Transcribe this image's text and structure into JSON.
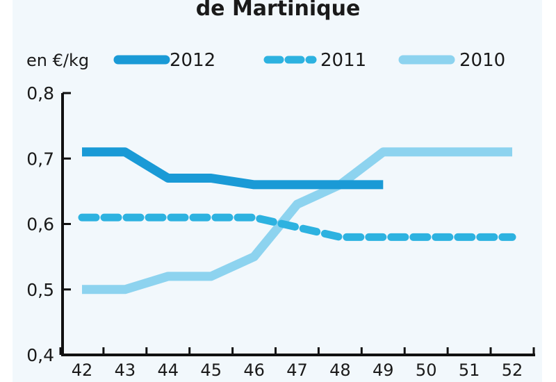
{
  "chart_data": {
    "type": "line",
    "title": "de Martinique",
    "unit_label": "en €/kg",
    "x": [
      42,
      43,
      44,
      45,
      46,
      47,
      48,
      49,
      50,
      51,
      52
    ],
    "x_tick_labels": [
      "42",
      "43",
      "44",
      "45",
      "46",
      "47",
      "48",
      "49",
      "50",
      "51",
      "52"
    ],
    "ylim": [
      0.4,
      0.8
    ],
    "y_ticks": [
      0.4,
      0.5,
      0.6,
      0.7,
      0.8
    ],
    "y_tick_labels": [
      "0,4",
      "0,5",
      "0,6",
      "0,7",
      "0,8"
    ],
    "grid": false,
    "legend_position": "top",
    "series": [
      {
        "name": "2012",
        "color": "#1a9ad6",
        "style": "solid",
        "x": [
          42,
          43,
          44,
          45,
          46,
          47,
          48,
          49
        ],
        "values": [
          0.71,
          0.71,
          0.67,
          0.67,
          0.66,
          0.66,
          0.66,
          0.66
        ]
      },
      {
        "name": "2011",
        "color": "#2db2e0",
        "style": "dashed",
        "x": [
          42,
          43,
          44,
          45,
          46,
          47,
          48,
          49,
          50,
          51,
          52
        ],
        "values": [
          0.61,
          0.61,
          0.61,
          0.61,
          0.61,
          0.595,
          0.58,
          0.58,
          0.58,
          0.58,
          0.58
        ]
      },
      {
        "name": "2010",
        "color": "#8dd3ef",
        "style": "solid",
        "x": [
          42,
          43,
          44,
          45,
          46,
          47,
          48,
          49,
          50,
          51,
          52
        ],
        "values": [
          0.5,
          0.5,
          0.52,
          0.52,
          0.55,
          0.63,
          0.66,
          0.71,
          0.71,
          0.71,
          0.71
        ]
      }
    ]
  }
}
